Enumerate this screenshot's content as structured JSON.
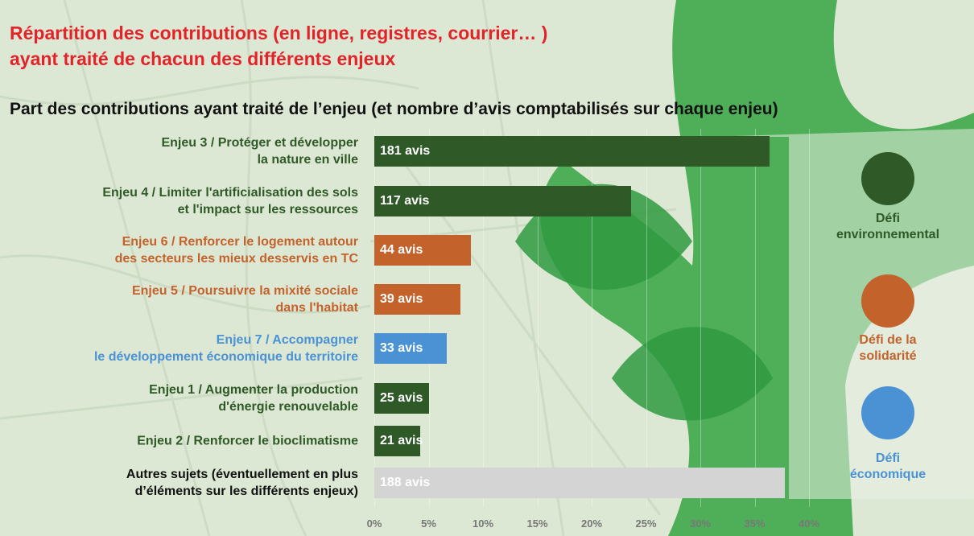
{
  "chart_data": {
    "type": "barh",
    "title_lines": [
      "Répartition des contributions (en ligne, registres, courrier… )",
      "ayant traité de chacun des différents enjeux"
    ],
    "subtitle": "Part des contributions ayant traité de l’enjeu (et nombre d’avis comptabilisés sur chaque enjeu)",
    "categories": [
      "Enjeu 3 / Protéger et développer\nla nature en ville",
      "Enjeu 4 / Limiter l'artificialisation des sols\net l'impact sur les ressources",
      "Enjeu 6 / Renforcer le logement autour\ndes secteurs les mieux desservis en TC",
      "Enjeu 5 / Poursuivre la mixité sociale\ndans l'habitat",
      "Enjeu 7 / Accompagner\nle développement économique du territoire",
      "Enjeu 1 / Augmenter la production\nd'énergie renouvelable",
      "Enjeu 2 / Renforcer le bioclimatisme",
      "Autres sujets (éventuellement en plus\nd’éléments sur les différents enjeux)"
    ],
    "values": [
      36.4,
      23.6,
      8.9,
      7.9,
      6.7,
      5.0,
      4.2,
      37.8
    ],
    "bar_labels": [
      "181 avis",
      "117 avis",
      "44 avis",
      "39 avis",
      "33 avis",
      "25 avis",
      "21 avis",
      "188 avis"
    ],
    "colors": [
      "#2f5a28",
      "#2f5a28",
      "#c4622c",
      "#c4622c",
      "#4b92d4",
      "#2f5a28",
      "#2f5a28",
      "#d4d4d4"
    ],
    "label_colors": [
      "#2f5a28",
      "#2f5a28",
      "#c4622c",
      "#c4622c",
      "#4b92d4",
      "#2f5a28",
      "#2f5a28",
      "#111111"
    ],
    "xlim": [
      0,
      40
    ],
    "xticks": [
      {
        "value": 0,
        "label": "0%"
      },
      {
        "value": 5,
        "label": "5%"
      },
      {
        "value": 10,
        "label": "10%"
      },
      {
        "value": 15,
        "label": "15%"
      },
      {
        "value": 20,
        "label": "20%"
      },
      {
        "value": 25,
        "label": "25%"
      },
      {
        "value": 30,
        "label": "30%"
      },
      {
        "value": 35,
        "label": "35%"
      },
      {
        "value": 40,
        "label": "40%"
      }
    ],
    "legend": [
      {
        "label": "Défi\nenvironnemental",
        "color": "#2f5a28"
      },
      {
        "label": "Défi de la\nsolidarité",
        "color": "#c4622c"
      },
      {
        "label": "Défi\néconomique",
        "color": "#4b92d4"
      }
    ]
  }
}
